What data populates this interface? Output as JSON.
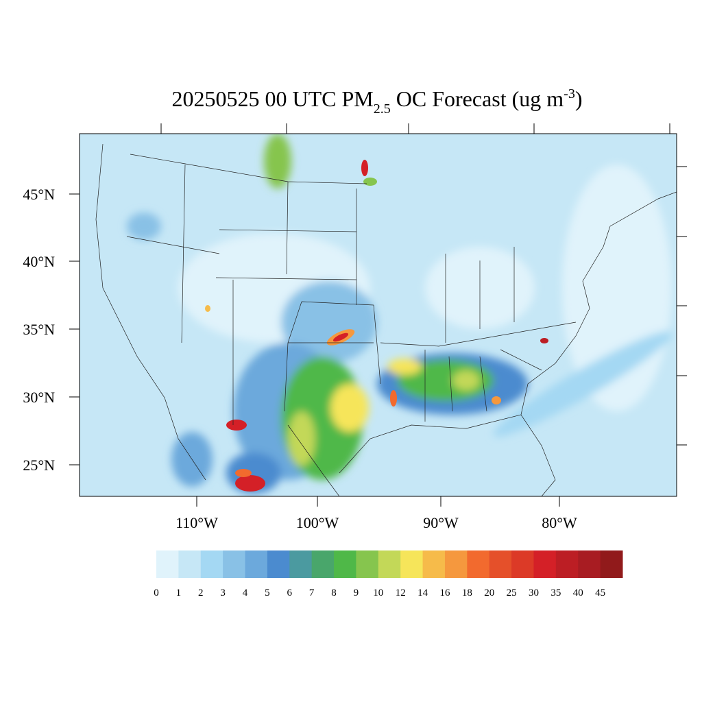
{
  "title": {
    "main": "20250525 00 UTC PM",
    "sub": "2.5",
    "mid": " OC Forecast (ug m",
    "sup": "-3",
    "end": ")"
  },
  "lat_labels": [
    "45°N",
    "40°N",
    "35°N",
    "30°N",
    "25°N"
  ],
  "lon_labels": [
    "110°W",
    "100°W",
    "90°W",
    "80°W"
  ],
  "colorbar": {
    "labels": [
      "0",
      "1",
      "2",
      "3",
      "4",
      "5",
      "6",
      "7",
      "8",
      "9",
      "10",
      "12",
      "14",
      "16",
      "18",
      "20",
      "25",
      "30",
      "35",
      "40",
      "45"
    ],
    "colors": [
      "#e0f3fb",
      "#c6e7f6",
      "#a4d8f3",
      "#89c1e6",
      "#6ca9dc",
      "#4b8bcf",
      "#4b9aa0",
      "#49a66b",
      "#4fb848",
      "#86c54e",
      "#c3d858",
      "#f6e55a",
      "#f6bb4a",
      "#f5983e",
      "#f26a2e",
      "#e5502a",
      "#dc3a27",
      "#d42027",
      "#bc1e24",
      "#a81c22",
      "#911a1b"
    ]
  }
}
